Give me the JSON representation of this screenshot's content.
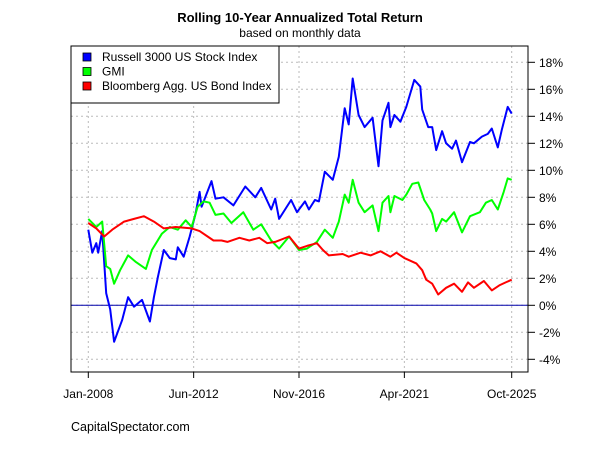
{
  "chart_data": {
    "type": "line",
    "title": "Rolling 10-Year Annualized Total Return",
    "subtitle": "based on monthly data",
    "source": "CapitalSpectator.com",
    "xlabel": "",
    "ylabel": "",
    "xlim": [
      "2008-01",
      "2025-10"
    ],
    "ylim": [
      -4,
      18
    ],
    "x_ticks": [
      {
        "label": "Jan-2008",
        "date": "2008-01"
      },
      {
        "label": "Jun-2012",
        "date": "2012-06"
      },
      {
        "label": "Nov-2016",
        "date": "2016-11"
      },
      {
        "label": "Apr-2021",
        "date": "2021-04"
      },
      {
        "label": "Oct-2025",
        "date": "2025-10"
      }
    ],
    "y_ticks": [
      18,
      16,
      14,
      12,
      10,
      8,
      6,
      4,
      2,
      0,
      -2,
      -4
    ],
    "y_tick_labels": [
      "18%",
      "16%",
      "14%",
      "12%",
      "10%",
      "8%",
      "6%",
      "4%",
      "2%",
      "0%",
      "-2%",
      "-4%"
    ],
    "y_axis_side": "right",
    "grid": true,
    "zero_line": true,
    "zero_line_color": "#0000aa",
    "legend_position": "top-left",
    "series": [
      {
        "name": "Russell 3000 US Stock Index",
        "color": "#0000ff",
        "points": [
          [
            "2008-01",
            5.6
          ],
          [
            "2008-03",
            3.9
          ],
          [
            "2008-05",
            4.6
          ],
          [
            "2008-06",
            3.9
          ],
          [
            "2008-08",
            5.5
          ],
          [
            "2008-10",
            0.9
          ],
          [
            "2008-12",
            -0.3
          ],
          [
            "2009-02",
            -2.7
          ],
          [
            "2009-06",
            -1.1
          ],
          [
            "2009-09",
            0.6
          ],
          [
            "2009-12",
            -0.1
          ],
          [
            "2010-04",
            0.4
          ],
          [
            "2010-08",
            -1.2
          ],
          [
            "2010-10",
            0.6
          ],
          [
            "2010-12",
            2.1
          ],
          [
            "2011-03",
            4.1
          ],
          [
            "2011-06",
            3.5
          ],
          [
            "2011-09",
            3.4
          ],
          [
            "2011-10",
            4.3
          ],
          [
            "2012-01",
            3.6
          ],
          [
            "2012-04",
            5.1
          ],
          [
            "2012-07",
            6.8
          ],
          [
            "2012-09",
            8.4
          ],
          [
            "2012-10",
            7.3
          ],
          [
            "2013-03",
            9.2
          ],
          [
            "2013-05",
            7.9
          ],
          [
            "2013-09",
            8.0
          ],
          [
            "2014-02",
            7.4
          ],
          [
            "2014-08",
            8.8
          ],
          [
            "2015-01",
            8.0
          ],
          [
            "2015-04",
            8.7
          ],
          [
            "2015-09",
            7.1
          ],
          [
            "2015-11",
            7.9
          ],
          [
            "2016-01",
            6.4
          ],
          [
            "2016-07",
            7.8
          ],
          [
            "2016-10",
            6.9
          ],
          [
            "2017-02",
            7.7
          ],
          [
            "2017-04",
            7.1
          ],
          [
            "2017-07",
            7.8
          ],
          [
            "2017-09",
            7.7
          ],
          [
            "2017-12",
            9.9
          ],
          [
            "2018-04",
            9.3
          ],
          [
            "2018-07",
            11.0
          ],
          [
            "2018-10",
            14.6
          ],
          [
            "2018-12",
            13.4
          ],
          [
            "2019-02",
            16.8
          ],
          [
            "2019-05",
            14.1
          ],
          [
            "2019-08",
            13.2
          ],
          [
            "2019-12",
            13.9
          ],
          [
            "2020-03",
            10.3
          ],
          [
            "2020-05",
            13.7
          ],
          [
            "2020-08",
            15.0
          ],
          [
            "2020-09",
            13.2
          ],
          [
            "2020-11",
            14.1
          ],
          [
            "2021-02",
            13.6
          ],
          [
            "2021-05",
            14.7
          ],
          [
            "2021-09",
            16.7
          ],
          [
            "2021-12",
            16.2
          ],
          [
            "2022-01",
            14.5
          ],
          [
            "2022-04",
            13.2
          ],
          [
            "2022-06",
            13.2
          ],
          [
            "2022-08",
            11.5
          ],
          [
            "2022-11",
            12.9
          ],
          [
            "2023-01",
            12.0
          ],
          [
            "2023-04",
            11.6
          ],
          [
            "2023-06",
            12.2
          ],
          [
            "2023-09",
            10.6
          ],
          [
            "2024-01",
            12.1
          ],
          [
            "2024-03",
            12.0
          ],
          [
            "2024-07",
            12.5
          ],
          [
            "2024-10",
            12.7
          ],
          [
            "2024-12",
            13.1
          ],
          [
            "2025-03",
            11.7
          ],
          [
            "2025-05",
            13.0
          ],
          [
            "2025-08",
            14.7
          ],
          [
            "2025-10",
            14.2
          ]
        ]
      },
      {
        "name": "GMI",
        "color": "#00ff00",
        "points": [
          [
            "2008-01",
            6.4
          ],
          [
            "2008-05",
            5.8
          ],
          [
            "2008-08",
            6.2
          ],
          [
            "2008-10",
            2.9
          ],
          [
            "2008-12",
            2.7
          ],
          [
            "2009-02",
            1.6
          ],
          [
            "2009-05",
            2.6
          ],
          [
            "2009-09",
            3.7
          ],
          [
            "2010-01",
            3.2
          ],
          [
            "2010-06",
            2.7
          ],
          [
            "2010-09",
            4.1
          ],
          [
            "2011-02",
            5.3
          ],
          [
            "2011-06",
            5.8
          ],
          [
            "2011-10",
            5.6
          ],
          [
            "2012-02",
            6.3
          ],
          [
            "2012-05",
            5.8
          ],
          [
            "2012-08",
            7.3
          ],
          [
            "2012-11",
            7.7
          ],
          [
            "2013-02",
            7.6
          ],
          [
            "2013-05",
            6.7
          ],
          [
            "2013-09",
            6.8
          ],
          [
            "2014-01",
            6.1
          ],
          [
            "2014-07",
            6.9
          ],
          [
            "2014-12",
            5.6
          ],
          [
            "2015-04",
            6.0
          ],
          [
            "2015-09",
            4.8
          ],
          [
            "2016-01",
            4.2
          ],
          [
            "2016-06",
            5.1
          ],
          [
            "2016-11",
            4.1
          ],
          [
            "2017-03",
            4.2
          ],
          [
            "2017-08",
            4.7
          ],
          [
            "2017-12",
            5.6
          ],
          [
            "2018-04",
            5.0
          ],
          [
            "2018-07",
            6.2
          ],
          [
            "2018-10",
            8.2
          ],
          [
            "2018-12",
            7.6
          ],
          [
            "2019-02",
            9.3
          ],
          [
            "2019-05",
            7.6
          ],
          [
            "2019-08",
            6.9
          ],
          [
            "2019-12",
            7.4
          ],
          [
            "2020-03",
            5.5
          ],
          [
            "2020-05",
            7.6
          ],
          [
            "2020-08",
            8.1
          ],
          [
            "2020-09",
            6.9
          ],
          [
            "2020-11",
            8.1
          ],
          [
            "2021-03",
            7.8
          ],
          [
            "2021-05",
            8.2
          ],
          [
            "2021-08",
            9.0
          ],
          [
            "2021-11",
            9.1
          ],
          [
            "2022-02",
            7.8
          ],
          [
            "2022-05",
            7.1
          ],
          [
            "2022-06",
            6.8
          ],
          [
            "2022-08",
            5.5
          ],
          [
            "2022-11",
            6.4
          ],
          [
            "2023-01",
            6.2
          ],
          [
            "2023-05",
            6.9
          ],
          [
            "2023-09",
            5.4
          ],
          [
            "2024-01",
            6.6
          ],
          [
            "2024-06",
            6.9
          ],
          [
            "2024-09",
            7.6
          ],
          [
            "2024-12",
            7.8
          ],
          [
            "2025-03",
            7.1
          ],
          [
            "2025-06",
            8.4
          ],
          [
            "2025-08",
            9.4
          ],
          [
            "2025-10",
            9.3
          ]
        ]
      },
      {
        "name": "Bloomberg Agg. US Bond Index",
        "color": "#ff0000",
        "points": [
          [
            "2008-01",
            6.1
          ],
          [
            "2008-05",
            5.7
          ],
          [
            "2008-09",
            5.1
          ],
          [
            "2009-01",
            5.6
          ],
          [
            "2009-07",
            6.2
          ],
          [
            "2009-12",
            6.4
          ],
          [
            "2010-05",
            6.6
          ],
          [
            "2010-10",
            6.2
          ],
          [
            "2011-03",
            5.7
          ],
          [
            "2011-09",
            5.8
          ],
          [
            "2012-05",
            5.7
          ],
          [
            "2012-09",
            5.5
          ],
          [
            "2013-01",
            5.1
          ],
          [
            "2013-04",
            4.8
          ],
          [
            "2013-08",
            4.8
          ],
          [
            "2013-11",
            4.7
          ],
          [
            "2014-05",
            5.0
          ],
          [
            "2014-10",
            4.8
          ],
          [
            "2015-03",
            5.0
          ],
          [
            "2015-07",
            4.6
          ],
          [
            "2015-11",
            4.7
          ],
          [
            "2016-06",
            5.1
          ],
          [
            "2016-11",
            4.2
          ],
          [
            "2017-03",
            4.4
          ],
          [
            "2017-08",
            4.6
          ],
          [
            "2017-11",
            4.1
          ],
          [
            "2018-02",
            3.7
          ],
          [
            "2018-09",
            3.8
          ],
          [
            "2018-12",
            3.6
          ],
          [
            "2019-06",
            3.9
          ],
          [
            "2019-11",
            3.7
          ],
          [
            "2020-04",
            4.0
          ],
          [
            "2020-09",
            3.6
          ],
          [
            "2020-12",
            3.9
          ],
          [
            "2021-04",
            3.5
          ],
          [
            "2021-10",
            3.1
          ],
          [
            "2022-01",
            2.6
          ],
          [
            "2022-03",
            1.9
          ],
          [
            "2022-06",
            1.6
          ],
          [
            "2022-09",
            0.8
          ],
          [
            "2023-01",
            1.3
          ],
          [
            "2023-05",
            1.6
          ],
          [
            "2023-09",
            1.0
          ],
          [
            "2023-12",
            1.7
          ],
          [
            "2024-03",
            1.3
          ],
          [
            "2024-08",
            1.8
          ],
          [
            "2024-12",
            1.1
          ],
          [
            "2025-04",
            1.5
          ],
          [
            "2025-07",
            1.7
          ],
          [
            "2025-10",
            1.9
          ]
        ]
      }
    ]
  }
}
